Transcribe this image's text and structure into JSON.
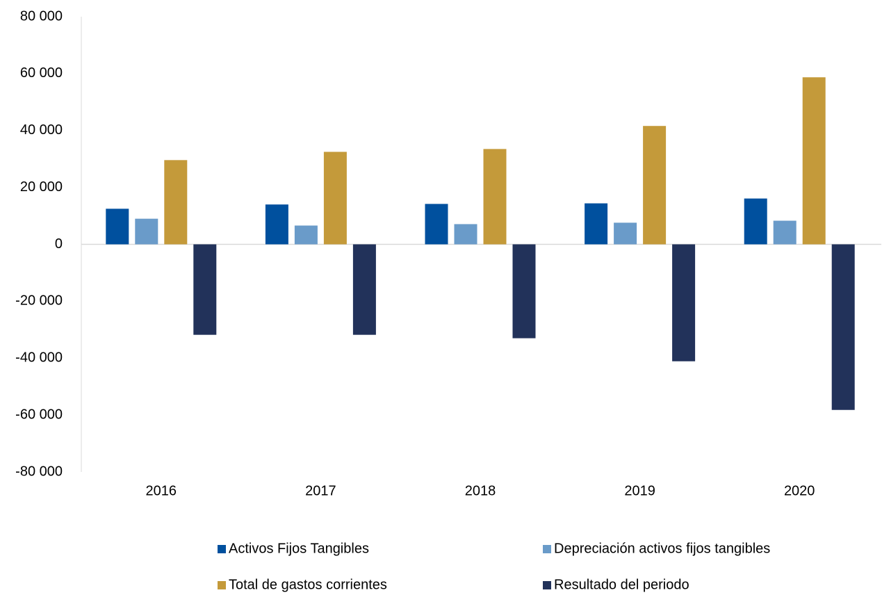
{
  "chart_data": {
    "type": "bar",
    "categories": [
      "2016",
      "2017",
      "2018",
      "2019",
      "2020"
    ],
    "series": [
      {
        "name": "Activos Fijos Tangibles",
        "color": "#00509e",
        "values": [
          12500,
          14000,
          14200,
          14400,
          16100
        ]
      },
      {
        "name": "Depreciación activos fijos tangibles",
        "color": "#6a9bc9",
        "values": [
          9000,
          6600,
          7100,
          7600,
          8300
        ]
      },
      {
        "name": "Total de gastos corrientes",
        "color": "#c49a3a",
        "values": [
          29600,
          32500,
          33500,
          41600,
          58700
        ]
      },
      {
        "name": "Resultado del periodo",
        "color": "#22325a",
        "values": [
          -31800,
          -31800,
          -33000,
          -41100,
          -58200
        ]
      }
    ],
    "ylim": [
      -80000,
      80000
    ],
    "yticks": [
      {
        "value": -80000,
        "label": "-80 000"
      },
      {
        "value": -60000,
        "label": "-60 000"
      },
      {
        "value": -40000,
        "label": "-40 000"
      },
      {
        "value": -20000,
        "label": "-20 000"
      },
      0,
      {
        "value": 20000,
        "label": "20 000"
      },
      {
        "value": 40000,
        "label": "40 000"
      },
      {
        "value": 60000,
        "label": "60 000"
      },
      {
        "value": 80000,
        "label": "80 000"
      }
    ],
    "grid": false,
    "legend": "bottom"
  }
}
